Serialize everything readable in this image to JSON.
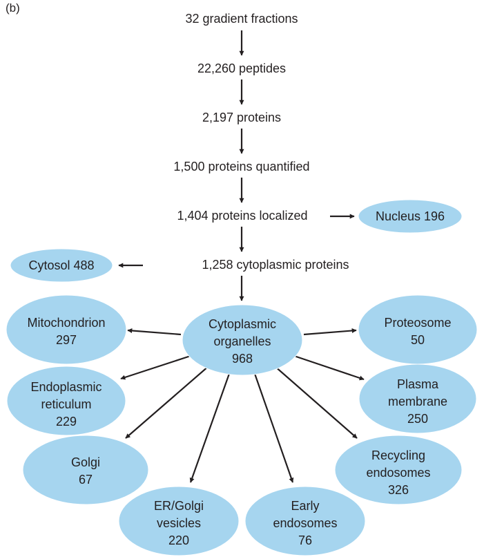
{
  "figure": {
    "panel_label": "(b)",
    "pipeline_steps": [
      "32 gradient fractions",
      "22,260 peptides",
      "2,197 proteins",
      "1,500 proteins quantified",
      "1,404 proteins localized",
      "1,258 cytoplasmic proteins"
    ],
    "side_outputs": {
      "nucleus": [
        "Nucleus 196"
      ],
      "cytosol": [
        "Cytosol 488"
      ]
    },
    "hub": [
      "Cytoplasmic",
      "organelles",
      "968"
    ],
    "organelles": {
      "mitochondrion": [
        "Mitochondrion",
        "297"
      ],
      "er": [
        "Endoplasmic",
        "reticulum",
        "229"
      ],
      "golgi": [
        "Golgi",
        "67"
      ],
      "er_golgi_vesicles": [
        "ER/Golgi",
        "vesicles",
        "220"
      ],
      "early_endosomes": [
        "Early",
        "endosomes",
        "76"
      ],
      "recycling_endosomes": [
        "Recycling",
        "endosomes",
        "326"
      ],
      "plasma_membrane": [
        "Plasma",
        "membrane",
        "250"
      ],
      "proteosome": [
        "Proteosome",
        "50"
      ]
    },
    "colors": {
      "ellipse_fill": "#a6d5ef",
      "text": "#231f20",
      "arrow": "#231f20"
    }
  }
}
